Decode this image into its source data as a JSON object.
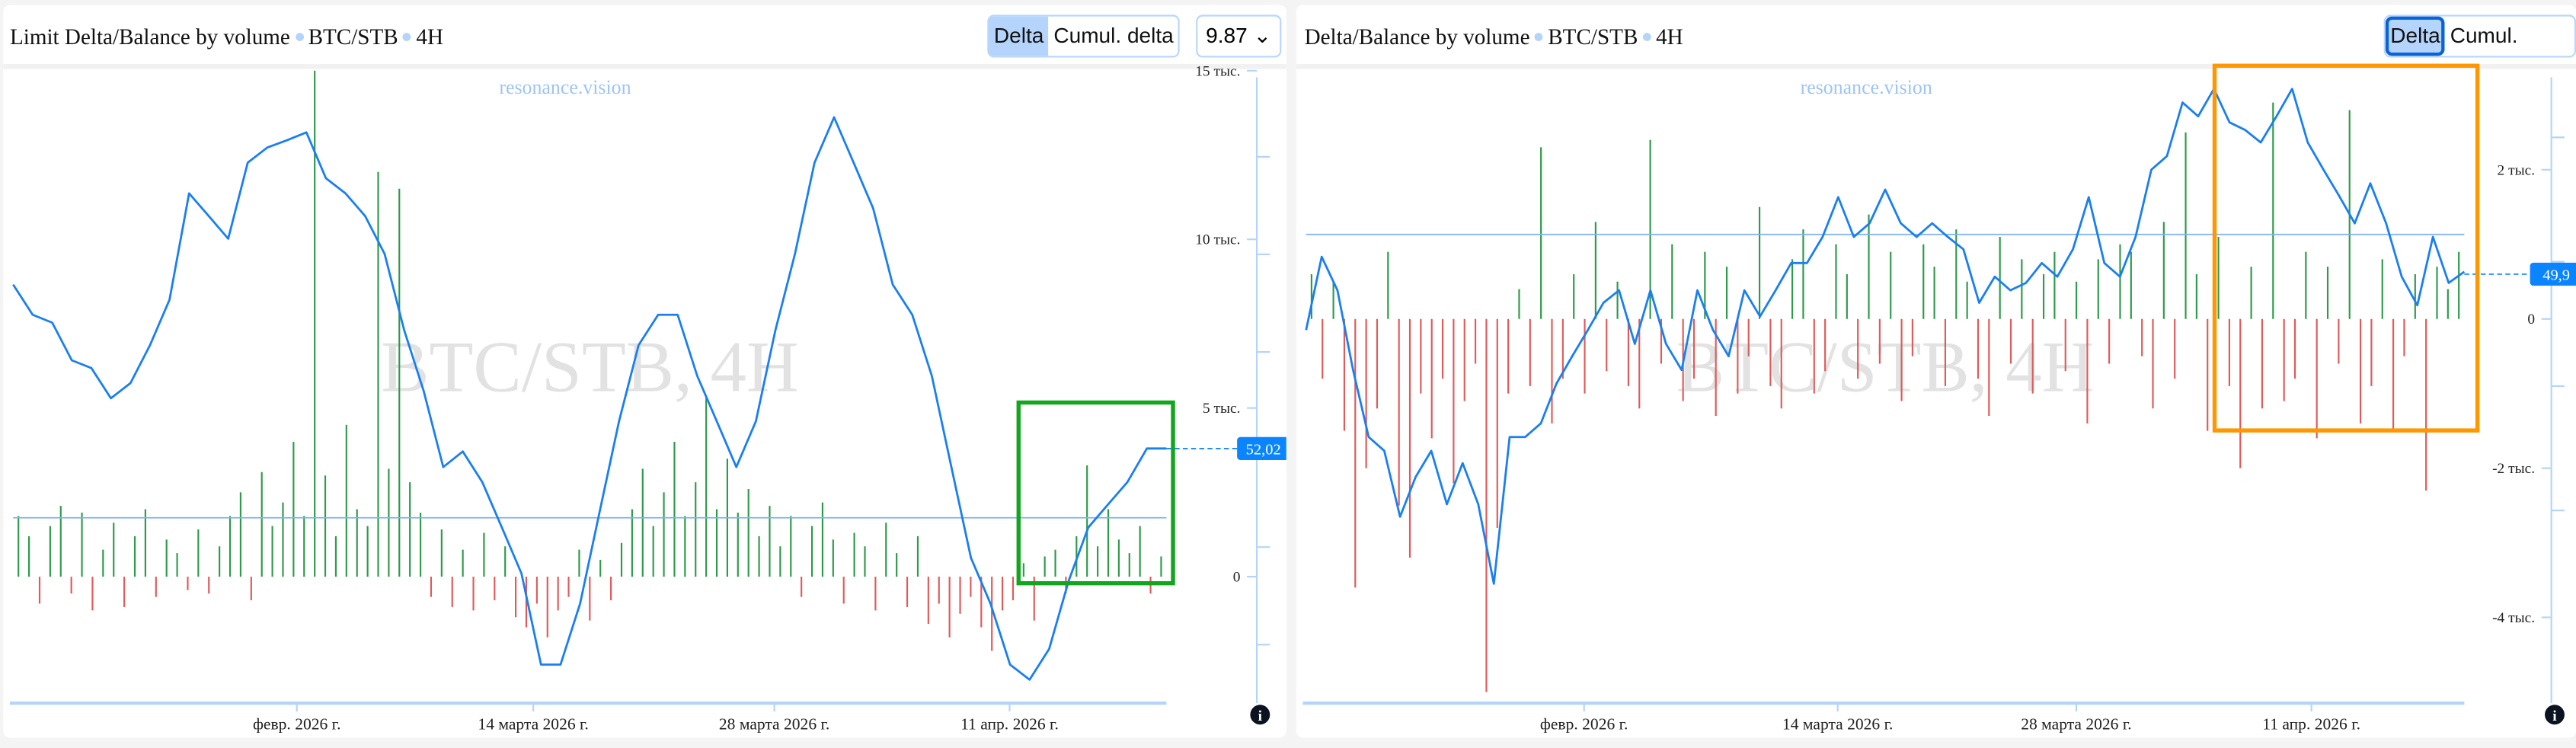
{
  "left": {
    "title": "Limit Delta/Balance by volume",
    "symbol": "BTC/STB",
    "timeframe": "4H",
    "tabs": [
      {
        "label": "Delta",
        "active": true
      },
      {
        "label": "Cumul. delta",
        "active": false
      }
    ],
    "select_value": "9.87",
    "watermark": "resonance.vision",
    "big_watermark": "BTC/STB, 4H",
    "price_badge": "52,02",
    "highlight_box_color": "#12a61e",
    "chart_data": {
      "type": "bar+line",
      "x_tick_labels": [
        "февр. 2026 г.",
        "14 марта 2026 г.",
        "28 марта 2026 г.",
        "11 апр. 2026 г."
      ],
      "bar_axis": {
        "ticks": [
          {
            "v": 15000,
            "label": "15 тыс."
          },
          {
            "v": 10000,
            "label": "10 тыс."
          },
          {
            "v": 5000,
            "label": "5 тыс."
          },
          {
            "v": 0,
            "label": "0"
          }
        ],
        "range": [
          -3750,
          15050
        ]
      },
      "price_axis": {
        "ticks": [
          58,
          56,
          54,
          52,
          50,
          48
        ],
        "range": [
          46.8,
          59.8
        ]
      },
      "reference_price": 50.6,
      "last_price": 52.02,
      "delta_thousands": [
        1.8,
        1.2,
        -0.8,
        1.5,
        2.1,
        -0.5,
        1.9,
        -1.0,
        0.8,
        1.6,
        -0.9,
        1.2,
        2.0,
        -0.6,
        1.1,
        0.7,
        -0.4,
        1.4,
        -0.5,
        0.9,
        1.8,
        2.5,
        -0.7,
        3.1,
        1.5,
        2.2,
        4.0,
        1.8,
        15.0,
        3.0,
        1.2,
        4.5,
        2.0,
        1.5,
        12.0,
        3.2,
        11.5,
        2.8,
        1.9,
        -0.6,
        1.4,
        -0.9,
        0.8,
        -1.0,
        1.3,
        -0.7,
        0.9,
        -1.2,
        -1.5,
        -0.8,
        -1.8,
        -1.0,
        -0.6,
        0.8,
        -1.3,
        0.5,
        -0.7,
        1.0,
        2.0,
        3.2,
        1.5,
        2.5,
        4.0,
        1.8,
        2.8,
        5.3,
        2.0,
        3.5,
        1.9,
        2.6,
        1.2,
        2.1,
        0.9,
        1.8,
        -0.6,
        1.5,
        2.2,
        1.1,
        -0.8,
        1.3,
        0.9,
        -1.0,
        1.6,
        0.7,
        -0.9,
        1.2,
        -1.4,
        -0.8,
        -1.8,
        -1.1,
        -0.6,
        -1.5,
        -2.2,
        -1.0,
        -0.7,
        0.4,
        -1.3,
        0.6,
        0.8,
        -0.5,
        1.2,
        3.3,
        0.9,
        2.0,
        1.1,
        0.7,
        1.5,
        -0.5,
        0.6
      ],
      "price": [
        55.38,
        54.76,
        54.6,
        53.83,
        53.67,
        53.05,
        53.36,
        54.14,
        55.07,
        57.25,
        56.79,
        56.32,
        57.88,
        58.19,
        58.34,
        58.5,
        57.56,
        57.25,
        56.79,
        56.01,
        54.45,
        53.2,
        51.64,
        51.96,
        51.33,
        50.4,
        49.46,
        47.59,
        47.59,
        48.84,
        50.71,
        52.58,
        54.14,
        54.76,
        54.76,
        53.51,
        52.58,
        51.64,
        52.58,
        54.45,
        56.01,
        57.88,
        58.81,
        57.88,
        56.94,
        55.38,
        54.76,
        53.51,
        51.64,
        49.78,
        48.84,
        47.59,
        47.28,
        47.91,
        49.31,
        50.4,
        50.87,
        51.33,
        52.02,
        52.02
      ]
    }
  },
  "right": {
    "title": "Delta/Balance by volume",
    "symbol": "BTC/STB",
    "timeframe": "4H",
    "tabs": [
      {
        "label": "Delta",
        "active": true
      },
      {
        "label": "Cumul. delta",
        "active": false
      }
    ],
    "watermark": "resonance.vision",
    "big_watermark": "BTC/STB, 4H",
    "price_badge": "49,9",
    "highlight_box_color": "#ff9800",
    "chart_data": {
      "type": "bar+line",
      "x_tick_labels": [
        "февр. 2026 г.",
        "14 марта 2026 г.",
        "28 марта 2026 г.",
        "11 апр. 2026 г."
      ],
      "bar_axis": {
        "ticks": [
          {
            "v": 2000,
            "label": "2 тыс."
          },
          {
            "v": 0,
            "label": "0"
          },
          {
            "v": -2000,
            "label": "-2 тыс."
          },
          {
            "v": -4000,
            "label": "-4 тыс."
          }
        ],
        "range": [
          -5150,
          3350
        ]
      },
      "price_axis": {
        "ticks": [
          51,
          50,
          49,
          48
        ],
        "range": [
          46.45,
          51.55
        ]
      },
      "reference_price": 50.22,
      "last_price": 49.9,
      "delta_thousands": [
        0.6,
        -0.8,
        0.5,
        -1.5,
        -3.6,
        -2.0,
        -1.2,
        0.9,
        -2.5,
        -3.2,
        -1.0,
        -1.6,
        -0.8,
        -2.2,
        -1.1,
        -0.6,
        -5.0,
        -2.8,
        -1.0,
        0.4,
        -0.9,
        2.3,
        -1.4,
        -0.8,
        0.6,
        -1.0,
        1.3,
        -0.7,
        0.5,
        -0.9,
        -1.2,
        2.4,
        -0.6,
        1.0,
        -1.1,
        -0.8,
        0.9,
        -1.3,
        0.7,
        -1.0,
        -0.5,
        1.5,
        -0.9,
        -1.2,
        0.8,
        1.2,
        -1.0,
        -0.7,
        1.0,
        0.6,
        -0.8,
        1.4,
        -0.6,
        0.9,
        -1.1,
        -0.5,
        1.0,
        0.7,
        -0.9,
        1.2,
        0.5,
        -0.8,
        -1.3,
        1.1,
        -0.6,
        0.8,
        -1.0,
        0.6,
        0.9,
        -0.7,
        0.5,
        -1.4,
        0.8,
        -0.6,
        1.0,
        0.9,
        -0.5,
        -1.2,
        1.3,
        -0.8,
        2.5,
        0.6,
        -1.5,
        1.1,
        -0.9,
        -2.0,
        0.7,
        -1.2,
        2.9,
        -1.1,
        -0.8,
        0.9,
        -1.6,
        0.7,
        -0.6,
        2.8,
        -1.4,
        -0.9,
        0.8,
        -1.5,
        -0.5,
        0.6,
        -2.3,
        0.7,
        0.4,
        0.9
      ],
      "price": [
        49.45,
        50.04,
        49.77,
        49.13,
        48.59,
        48.48,
        47.95,
        48.27,
        48.48,
        48.05,
        48.38,
        48.05,
        47.41,
        48.59,
        48.59,
        48.7,
        49.02,
        49.24,
        49.45,
        49.67,
        49.77,
        49.34,
        49.77,
        49.34,
        49.13,
        49.77,
        49.45,
        49.24,
        49.77,
        49.56,
        49.77,
        49.99,
        49.99,
        50.2,
        50.52,
        50.2,
        50.31,
        50.58,
        50.31,
        50.2,
        50.31,
        50.2,
        50.1,
        49.67,
        49.88,
        49.77,
        49.83,
        49.99,
        49.88,
        50.1,
        50.52,
        49.99,
        49.88,
        50.2,
        50.74,
        50.85,
        51.28,
        51.17,
        51.39,
        51.12,
        51.06,
        50.96,
        51.17,
        51.39,
        50.96,
        50.74,
        50.53,
        50.31,
        50.63,
        50.31,
        49.88,
        49.65,
        50.2,
        49.83,
        49.92
      ]
    }
  },
  "colors": {
    "bar_up": "#2e9a4a",
    "bar_down": "#e05a5a",
    "price_line": "#1a7ff0",
    "axis": "#b4d4fb",
    "badge": "#0a84ff"
  }
}
